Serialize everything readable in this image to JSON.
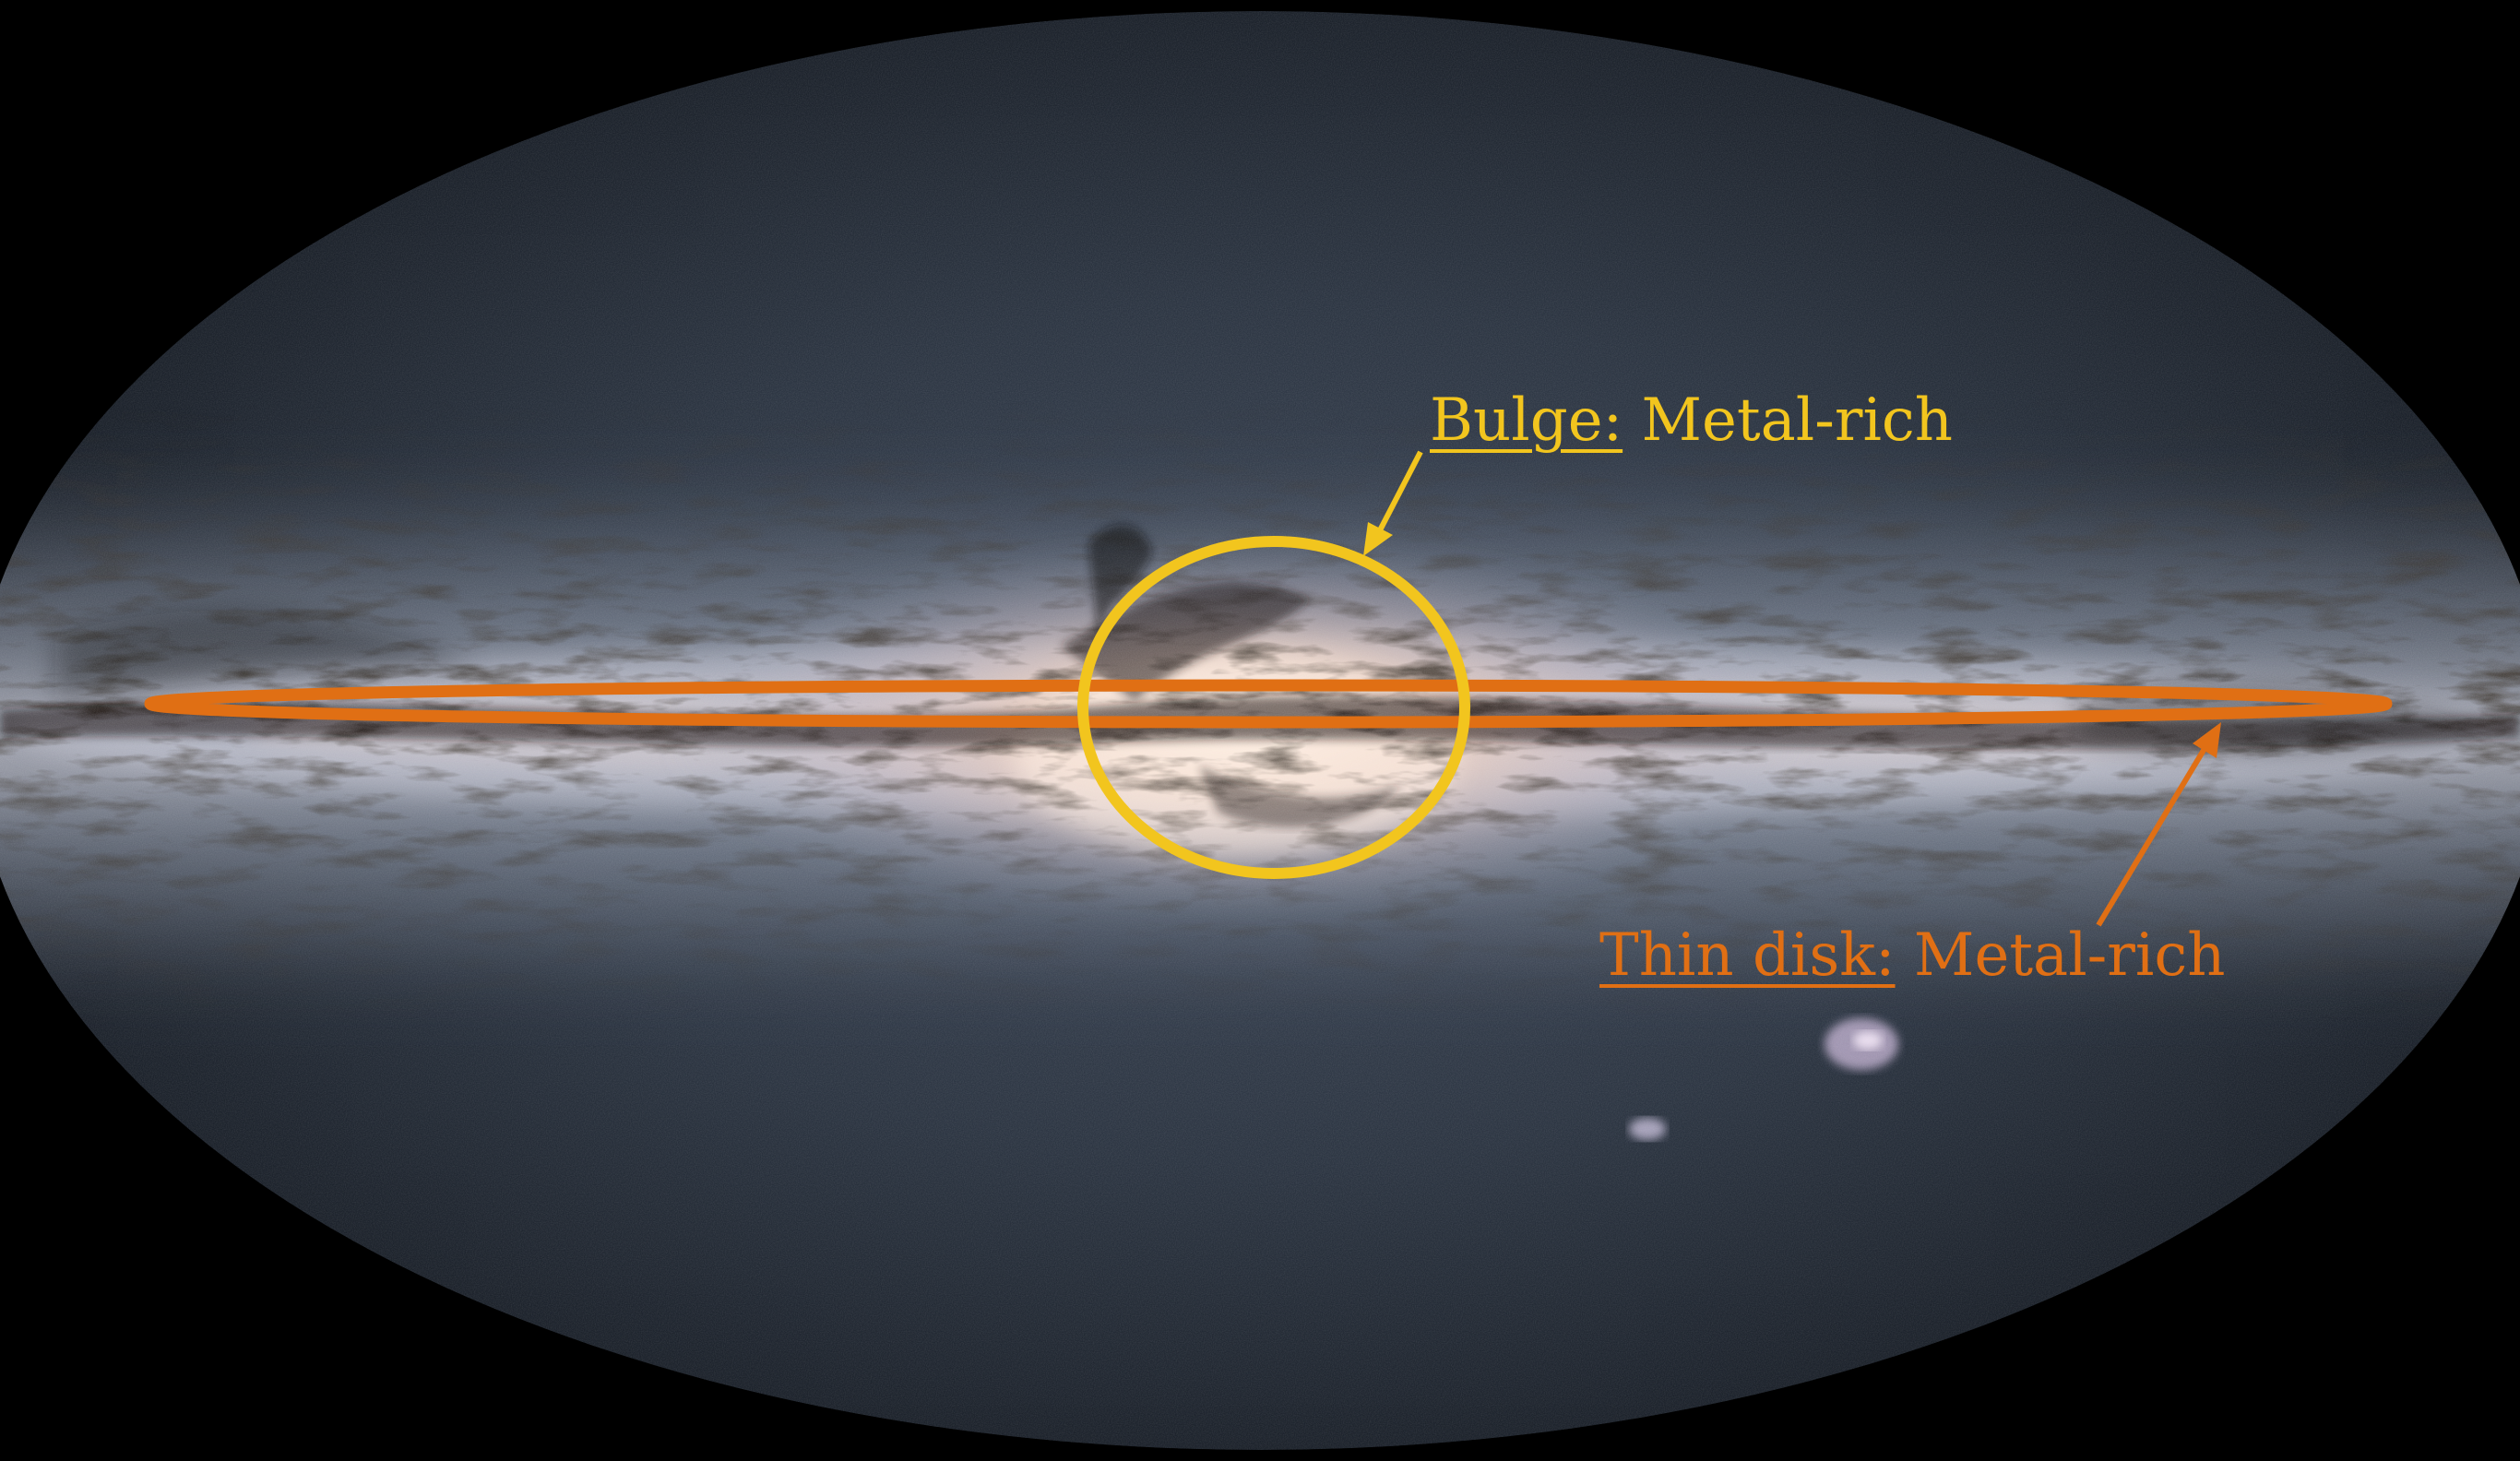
{
  "annotations": {
    "bulge": {
      "region": "Bulge:",
      "property": " Metal-rich",
      "color": "#f2c51e"
    },
    "thin_disk": {
      "region": "Thin disk:",
      "property": " Metal-rich",
      "color": "#e06f14"
    }
  },
  "colors": {
    "background": "#000000",
    "sky": "#2a333f",
    "band_core": "#f4dccb",
    "band_glow": "#b6bccd",
    "dust": "#0e0a09"
  }
}
